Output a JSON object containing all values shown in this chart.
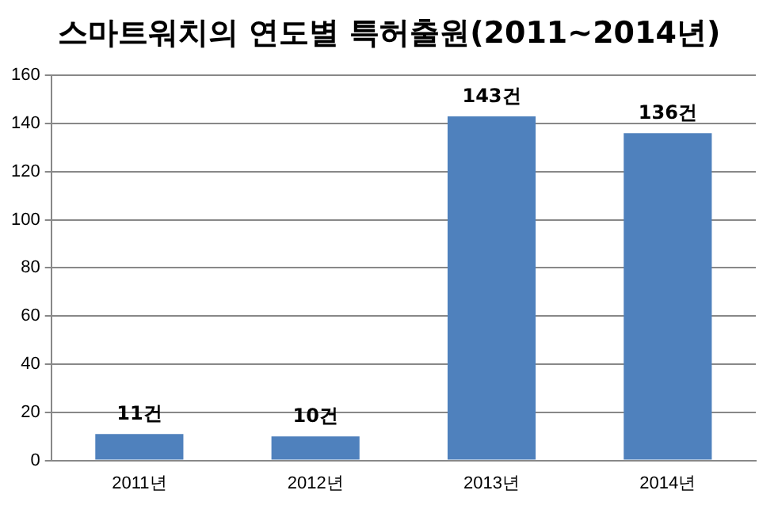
{
  "chart_data": {
    "type": "bar",
    "title": "스마트워치의 연도별 특허출원(2011~2014년)",
    "categories": [
      "2011년",
      "2012년",
      "2013년",
      "2014년"
    ],
    "values": [
      11,
      10,
      143,
      136
    ],
    "value_labels": [
      "11건",
      "10건",
      "143건",
      "136건"
    ],
    "color": "#4f81bd",
    "ylim": [
      0,
      160
    ],
    "yticks": [
      0,
      20,
      40,
      60,
      80,
      100,
      120,
      140,
      160
    ],
    "grid": "y",
    "legend": false
  }
}
